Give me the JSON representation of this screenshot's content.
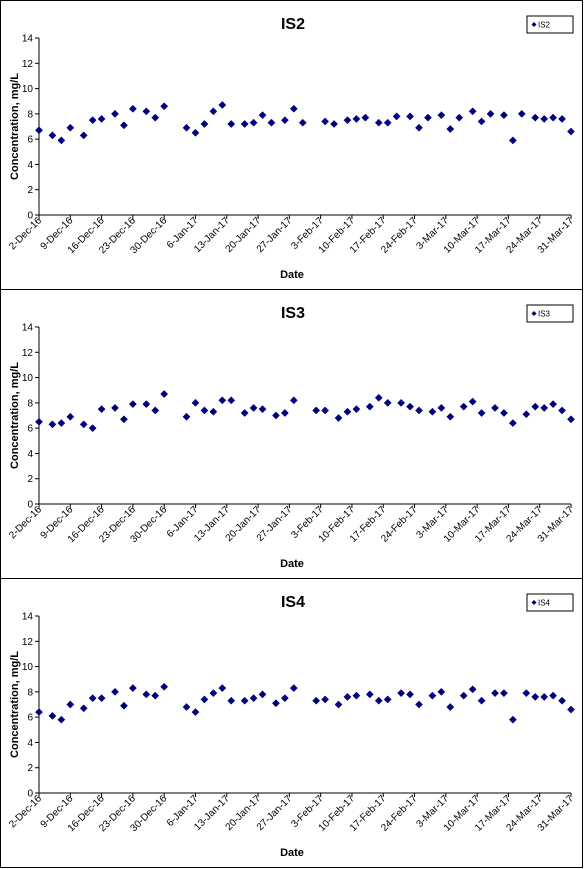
{
  "chart_data": [
    {
      "type": "scatter",
      "title": "IS2",
      "xlabel": "Date",
      "ylabel": "Concentration, mg/L",
      "ylim": [
        0,
        14
      ],
      "yticks": [
        "0",
        "2",
        "4",
        "6",
        "8",
        "10",
        "12",
        "14"
      ],
      "xlim": [
        "2016-12-02",
        "2017-03-31"
      ],
      "xticks": [
        "2-Dec-16",
        "9-Dec-16",
        "16-Dec-16",
        "23-Dec-16",
        "30-Dec-16",
        "6-Jan-17",
        "13-Jan-17",
        "20-Jan-17",
        "27-Jan-17",
        "3-Feb-17",
        "10-Feb-17",
        "17-Feb-17",
        "24-Feb-17",
        "3-Mar-17",
        "10-Mar-17",
        "17-Mar-17",
        "24-Mar-17",
        "31-Mar-17"
      ],
      "legend_position": "top-right",
      "grid": false,
      "series": [
        {
          "name": "IS2",
          "color": "#00007f",
          "marker": "diamond",
          "x": [
            "2016-12-02",
            "2016-12-05",
            "2016-12-07",
            "2016-12-09",
            "2016-12-12",
            "2016-12-14",
            "2016-12-16",
            "2016-12-19",
            "2016-12-21",
            "2016-12-23",
            "2016-12-26",
            "2016-12-28",
            "2016-12-30",
            "2017-01-04",
            "2017-01-06",
            "2017-01-08",
            "2017-01-10",
            "2017-01-12",
            "2017-01-14",
            "2017-01-17",
            "2017-01-19",
            "2017-01-21",
            "2017-01-23",
            "2017-01-26",
            "2017-01-28",
            "2017-01-30",
            "2017-02-04",
            "2017-02-06",
            "2017-02-09",
            "2017-02-11",
            "2017-02-13",
            "2017-02-16",
            "2017-02-18",
            "2017-02-20",
            "2017-02-23",
            "2017-02-25",
            "2017-02-27",
            "2017-03-02",
            "2017-03-04",
            "2017-03-06",
            "2017-03-09",
            "2017-03-11",
            "2017-03-13",
            "2017-03-16",
            "2017-03-18",
            "2017-03-20",
            "2017-03-23",
            "2017-03-25",
            "2017-03-27",
            "2017-03-29",
            "2017-03-31"
          ],
          "y": [
            6.7,
            6.3,
            5.9,
            6.9,
            6.3,
            7.5,
            7.6,
            8.0,
            7.1,
            8.4,
            8.2,
            7.7,
            8.6,
            6.9,
            6.5,
            7.2,
            8.2,
            8.7,
            7.2,
            7.2,
            7.3,
            7.9,
            7.3,
            7.5,
            8.4,
            7.3,
            7.4,
            7.2,
            7.5,
            7.6,
            7.7,
            7.3,
            7.3,
            7.8,
            7.8,
            6.9,
            7.7,
            7.9,
            6.8,
            7.7,
            8.2,
            7.4,
            8.0,
            7.9,
            5.9,
            8.0,
            7.7,
            7.6,
            7.7,
            7.6,
            6.6
          ]
        }
      ]
    },
    {
      "type": "scatter",
      "title": "IS3",
      "xlabel": "Date",
      "ylabel": "Concentration, mg/L",
      "ylim": [
        0,
        14
      ],
      "yticks": [
        "0",
        "2",
        "4",
        "6",
        "8",
        "10",
        "12",
        "14"
      ],
      "xlim": [
        "2016-12-02",
        "2017-03-31"
      ],
      "xticks": [
        "2-Dec-16",
        "9-Dec-16",
        "16-Dec-16",
        "23-Dec-16",
        "30-Dec-16",
        "6-Jan-17",
        "13-Jan-17",
        "20-Jan-17",
        "27-Jan-17",
        "3-Feb-17",
        "10-Feb-17",
        "17-Feb-17",
        "24-Feb-17",
        "3-Mar-17",
        "10-Mar-17",
        "17-Mar-17",
        "24-Mar-17",
        "31-Mar-17"
      ],
      "legend_position": "top-right",
      "grid": false,
      "series": [
        {
          "name": "IS3",
          "color": "#00007f",
          "marker": "diamond",
          "x": [
            "2016-12-02",
            "2016-12-05",
            "2016-12-07",
            "2016-12-09",
            "2016-12-12",
            "2016-12-14",
            "2016-12-16",
            "2016-12-19",
            "2016-12-21",
            "2016-12-23",
            "2016-12-26",
            "2016-12-28",
            "2016-12-30",
            "2017-01-04",
            "2017-01-06",
            "2017-01-08",
            "2017-01-10",
            "2017-01-12",
            "2017-01-14",
            "2017-01-17",
            "2017-01-19",
            "2017-01-21",
            "2017-01-24",
            "2017-01-26",
            "2017-01-28",
            "2017-02-02",
            "2017-02-04",
            "2017-02-07",
            "2017-02-09",
            "2017-02-11",
            "2017-02-14",
            "2017-02-16",
            "2017-02-18",
            "2017-02-21",
            "2017-02-23",
            "2017-02-25",
            "2017-02-28",
            "2017-03-02",
            "2017-03-04",
            "2017-03-07",
            "2017-03-09",
            "2017-03-11",
            "2017-03-14",
            "2017-03-16",
            "2017-03-18",
            "2017-03-21",
            "2017-03-23",
            "2017-03-25",
            "2017-03-27",
            "2017-03-29",
            "2017-03-31"
          ],
          "y": [
            6.5,
            6.3,
            6.4,
            6.9,
            6.3,
            6.0,
            7.5,
            7.6,
            6.7,
            7.9,
            7.9,
            7.4,
            8.7,
            6.9,
            8.0,
            7.4,
            7.3,
            8.2,
            8.2,
            7.2,
            7.6,
            7.5,
            7.0,
            7.2,
            8.2,
            7.4,
            7.4,
            6.8,
            7.3,
            7.5,
            7.7,
            8.4,
            8.0,
            8.0,
            7.7,
            7.4,
            7.3,
            7.6,
            6.9,
            7.7,
            8.1,
            7.2,
            7.6,
            7.2,
            6.4,
            7.1,
            7.7,
            7.6,
            7.9,
            7.4,
            6.7
          ]
        }
      ]
    },
    {
      "type": "scatter",
      "title": "IS4",
      "xlabel": "Date",
      "ylabel": "Concentration, mg/L",
      "ylim": [
        0,
        14
      ],
      "yticks": [
        "0",
        "2",
        "4",
        "6",
        "8",
        "10",
        "12",
        "14"
      ],
      "xlim": [
        "2016-12-02",
        "2017-03-31"
      ],
      "xticks": [
        "2-Dec-16",
        "9-Dec-16",
        "16-Dec-16",
        "23-Dec-16",
        "30-Dec-16",
        "6-Jan-17",
        "13-Jan-17",
        "20-Jan-17",
        "27-Jan-17",
        "3-Feb-17",
        "10-Feb-17",
        "17-Feb-17",
        "24-Feb-17",
        "3-Mar-17",
        "10-Mar-17",
        "17-Mar-17",
        "24-Mar-17",
        "31-Mar-17"
      ],
      "legend_position": "top-right",
      "grid": false,
      "series": [
        {
          "name": "IS4",
          "color": "#00007f",
          "marker": "diamond",
          "x": [
            "2016-12-02",
            "2016-12-05",
            "2016-12-07",
            "2016-12-09",
            "2016-12-12",
            "2016-12-14",
            "2016-12-16",
            "2016-12-19",
            "2016-12-21",
            "2016-12-23",
            "2016-12-26",
            "2016-12-28",
            "2016-12-30",
            "2017-01-04",
            "2017-01-06",
            "2017-01-08",
            "2017-01-10",
            "2017-01-12",
            "2017-01-14",
            "2017-01-17",
            "2017-01-19",
            "2017-01-21",
            "2017-01-24",
            "2017-01-26",
            "2017-01-28",
            "2017-02-02",
            "2017-02-04",
            "2017-02-07",
            "2017-02-09",
            "2017-02-11",
            "2017-02-14",
            "2017-02-16",
            "2017-02-18",
            "2017-02-21",
            "2017-02-23",
            "2017-02-25",
            "2017-02-28",
            "2017-03-02",
            "2017-03-04",
            "2017-03-07",
            "2017-03-09",
            "2017-03-11",
            "2017-03-14",
            "2017-03-16",
            "2017-03-18",
            "2017-03-21",
            "2017-03-23",
            "2017-03-25",
            "2017-03-27",
            "2017-03-29",
            "2017-03-31"
          ],
          "y": [
            6.4,
            6.1,
            5.8,
            7.0,
            6.7,
            7.5,
            7.5,
            8.0,
            6.9,
            8.3,
            7.8,
            7.7,
            8.4,
            6.8,
            6.4,
            7.4,
            7.9,
            8.3,
            7.3,
            7.3,
            7.5,
            7.8,
            7.1,
            7.5,
            8.3,
            7.3,
            7.4,
            7.0,
            7.6,
            7.7,
            7.8,
            7.3,
            7.4,
            7.9,
            7.8,
            7.0,
            7.7,
            8.0,
            6.8,
            7.7,
            8.2,
            7.3,
            7.9,
            7.9,
            5.8,
            7.9,
            7.6,
            7.6,
            7.7,
            7.3,
            6.6
          ]
        }
      ]
    }
  ]
}
